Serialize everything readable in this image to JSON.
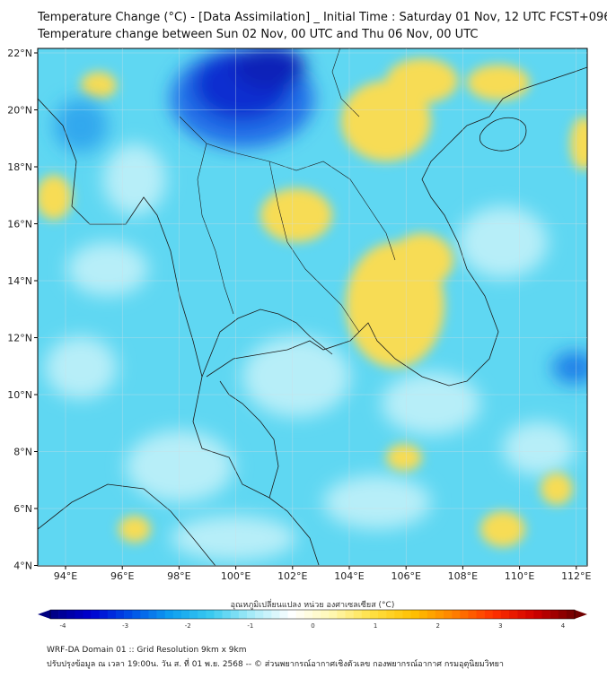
{
  "title_line1": "Temperature Change (°C) - [Data Assimilation] _ Initial Time : Saturday 01 Nov, 12 UTC FCST+096",
  "title_line2": "Temperature change between Sun 02 Nov, 00 UTC and Thu 06 Nov, 00 UTC",
  "lon_ticks": [
    "94°E",
    "96°E",
    "98°E",
    "100°E",
    "102°E",
    "104°E",
    "106°E",
    "108°E",
    "110°E",
    "112°E"
  ],
  "lat_ticks": [
    "22°N",
    "20°N",
    "18°N",
    "16°N",
    "14°N",
    "12°N",
    "10°N",
    "8°N",
    "6°N",
    "4°N"
  ],
  "colorbar": {
    "title": "อุณหภูมิเปลี่ยนแปลง หน่วย องศาเซลเซียส (°C)",
    "tick_labels": [
      "-4",
      "-3",
      "-2",
      "-1",
      "0",
      "1",
      "2",
      "3",
      "4"
    ],
    "min": -4,
    "max": 4,
    "colors": [
      "#000080",
      "#0000d0",
      "#0050e8",
      "#0ea0f0",
      "#3ccbf0",
      "#a8ecf8",
      "#ffffff",
      "#fff7b0",
      "#ffe040",
      "#ffc000",
      "#ff8000",
      "#ff3000",
      "#d00000",
      "#700000"
    ]
  },
  "footer_line1": "WRF-DA Domain 01 :: Grid Resolution 9km x 9km",
  "footer_line2": "ปรับปรุงข้อมูล ณ เวลา 19:00น. วัน ส. ที่ 01 พ.ย. 2568 -- © ส่วนพยากรณ์อากาศเชิงตัวเลข กองพยากรณ์อากาศ กรมอุตุนิยมวิทยา",
  "map": {
    "background_color": "#5fd7f2",
    "warm_color": "#f5d53a",
    "cold_color": "#0a2fd0"
  }
}
